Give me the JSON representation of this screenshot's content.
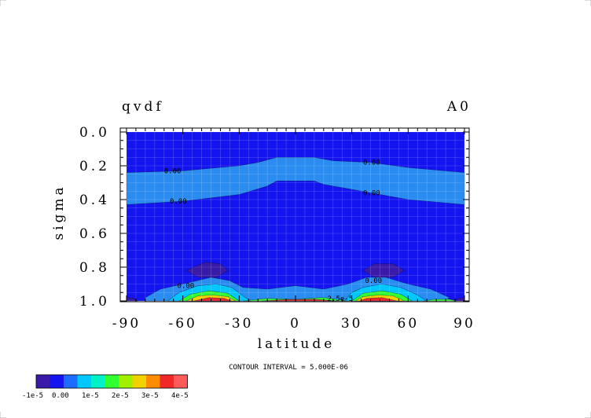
{
  "chart_data": {
    "type": "contour",
    "title_left": "qvdf",
    "title_right": "A0",
    "xlabel": "latitude",
    "ylabel": "sigma",
    "xlim": [
      -90,
      90
    ],
    "ylim": [
      1.0,
      0.0
    ],
    "x_ticks": [
      "-90",
      "-60",
      "-30",
      "0",
      "30",
      "60",
      "90"
    ],
    "y_ticks": [
      "0.0",
      "0.2",
      "0.4",
      "0.6",
      "0.8",
      "1.0"
    ],
    "contour_labels": [
      {
        "text": "0.00",
        "lat": -70,
        "sigma": 0.23
      },
      {
        "text": "0.00",
        "lat": 36,
        "sigma": 0.18
      },
      {
        "text": "0.00",
        "lat": -67,
        "sigma": 0.41
      },
      {
        "text": "0.00",
        "lat": 36,
        "sigma": 0.36
      },
      {
        "text": "0.00",
        "lat": -63,
        "sigma": 0.91
      },
      {
        "text": "0.00",
        "lat": 37,
        "sigma": 0.88
      },
      {
        "text": "2.5e-5",
        "lat": 17,
        "sigma": 0.985
      }
    ],
    "contour_interval_text": "CONTOUR INTERVAL = 5.000E-06",
    "colorbar": {
      "colors": [
        "#3a1aa8",
        "#1414f0",
        "#1e6cff",
        "#00c8ff",
        "#00f0c8",
        "#32ff32",
        "#a0f000",
        "#f0d200",
        "#ff8c00",
        "#f02828",
        "#ff5a5a"
      ],
      "labels": [
        "-1e-5",
        "0.00",
        "1e-5",
        "2e-5",
        "3e-5",
        "4e-5"
      ]
    },
    "fields": [
      {
        "name": "upper-lighter-band",
        "color": "#2a8cf0",
        "top": [
          [
            -90,
            0.24
          ],
          [
            -60,
            0.23
          ],
          [
            -30,
            0.2
          ],
          [
            -20,
            0.18
          ],
          [
            -10,
            0.15
          ],
          [
            10,
            0.15
          ],
          [
            20,
            0.17
          ],
          [
            40,
            0.18
          ],
          [
            60,
            0.21
          ],
          [
            90,
            0.24
          ]
        ],
        "bottom": [
          [
            -90,
            0.43
          ],
          [
            -60,
            0.41
          ],
          [
            -30,
            0.37
          ],
          [
            -15,
            0.32
          ],
          [
            -10,
            0.29
          ],
          [
            10,
            0.29
          ],
          [
            15,
            0.31
          ],
          [
            30,
            0.34
          ],
          [
            60,
            0.4
          ],
          [
            90,
            0.43
          ]
        ]
      },
      {
        "name": "negative-blob-south",
        "color": "#3a1aa8",
        "points": [
          [
            -58,
            0.82
          ],
          [
            -48,
            0.77
          ],
          [
            -40,
            0.78
          ],
          [
            -36,
            0.82
          ],
          [
            -42,
            0.86
          ],
          [
            -52,
            0.86
          ]
        ]
      },
      {
        "name": "negative-blob-north",
        "color": "#3a1aa8",
        "points": [
          [
            36,
            0.82
          ],
          [
            42,
            0.78
          ],
          [
            52,
            0.78
          ],
          [
            58,
            0.82
          ],
          [
            52,
            0.86
          ],
          [
            42,
            0.86
          ]
        ]
      },
      {
        "name": "near-surface-zero-band",
        "color": "#2a8cf0",
        "top": [
          [
            -80,
            0.98
          ],
          [
            -72,
            0.93
          ],
          [
            -60,
            0.9
          ],
          [
            -45,
            0.86
          ],
          [
            -35,
            0.88
          ],
          [
            -28,
            0.92
          ],
          [
            -15,
            0.93
          ],
          [
            0,
            0.91
          ],
          [
            15,
            0.93
          ],
          [
            28,
            0.9
          ],
          [
            38,
            0.86
          ],
          [
            48,
            0.86
          ],
          [
            60,
            0.9
          ],
          [
            72,
            0.93
          ],
          [
            82,
            0.98
          ]
        ],
        "bottom": [
          [
            -80,
            1.0
          ],
          [
            80,
            1.0
          ]
        ]
      },
      {
        "name": "cyan-band-south",
        "color": "#00c8ff",
        "points": [
          [
            -68,
            1.0
          ],
          [
            -62,
            0.95
          ],
          [
            -52,
            0.91
          ],
          [
            -42,
            0.9
          ],
          [
            -34,
            0.92
          ],
          [
            -28,
            0.97
          ],
          [
            -24,
            1.0
          ]
        ]
      },
      {
        "name": "cyan-band-north",
        "color": "#00c8ff",
        "points": [
          [
            26,
            1.0
          ],
          [
            30,
            0.95
          ],
          [
            36,
            0.92
          ],
          [
            46,
            0.9
          ],
          [
            56,
            0.92
          ],
          [
            64,
            0.96
          ],
          [
            70,
            1.0
          ]
        ]
      },
      {
        "name": "green-band-south",
        "color": "#32ff32",
        "points": [
          [
            -62,
            1.0
          ],
          [
            -56,
            0.96
          ],
          [
            -46,
            0.94
          ],
          [
            -36,
            0.955
          ],
          [
            -30,
            1.0
          ]
        ]
      },
      {
        "name": "green-band-north",
        "color": "#32ff32",
        "points": [
          [
            30,
            1.0
          ],
          [
            36,
            0.955
          ],
          [
            46,
            0.94
          ],
          [
            56,
            0.96
          ],
          [
            62,
            1.0
          ]
        ]
      },
      {
        "name": "yellow-band-south",
        "color": "#f0d200",
        "points": [
          [
            -58,
            1.0
          ],
          [
            -52,
            0.97
          ],
          [
            -44,
            0.965
          ],
          [
            -36,
            0.975
          ],
          [
            -32,
            1.0
          ]
        ]
      },
      {
        "name": "yellow-band-north",
        "color": "#f0d200",
        "points": [
          [
            32,
            1.0
          ],
          [
            36,
            0.975
          ],
          [
            44,
            0.965
          ],
          [
            52,
            0.97
          ],
          [
            58,
            1.0
          ]
        ]
      },
      {
        "name": "red-band-south",
        "color": "#f02828",
        "points": [
          [
            -54,
            1.0
          ],
          [
            -46,
            0.98
          ],
          [
            -38,
            0.985
          ],
          [
            -34,
            1.0
          ]
        ]
      },
      {
        "name": "red-band-north",
        "color": "#f02828",
        "points": [
          [
            34,
            1.0
          ],
          [
            38,
            0.985
          ],
          [
            46,
            0.98
          ],
          [
            54,
            1.0
          ]
        ]
      },
      {
        "name": "equatorial-surface-band",
        "color": "#32ff32",
        "points": [
          [
            -28,
            1.0
          ],
          [
            -15,
            0.985
          ],
          [
            0,
            0.99
          ],
          [
            15,
            0.98
          ],
          [
            28,
            1.0
          ]
        ]
      },
      {
        "name": "equatorial-surface-core",
        "color": "#f02828",
        "points": [
          [
            -18,
            1.0
          ],
          [
            -5,
            0.992
          ],
          [
            10,
            0.99
          ],
          [
            22,
            1.0
          ]
        ]
      },
      {
        "name": "south-edge-negative",
        "color": "#3a1aa8",
        "points": [
          [
            -90,
            0.98
          ],
          [
            -86,
            0.985
          ],
          [
            -84,
            1.0
          ],
          [
            -90,
            1.0
          ]
        ]
      },
      {
        "name": "north-edge-negative",
        "color": "#3a1aa8",
        "points": [
          [
            84,
            1.0
          ],
          [
            87,
            0.985
          ],
          [
            90,
            0.98
          ],
          [
            90,
            1.0
          ]
        ]
      },
      {
        "name": "north-edge-green",
        "color": "#32ff32",
        "points": [
          [
            68,
            1.0
          ],
          [
            74,
            0.99
          ],
          [
            82,
            0.99
          ],
          [
            86,
            1.0
          ]
        ]
      }
    ]
  }
}
